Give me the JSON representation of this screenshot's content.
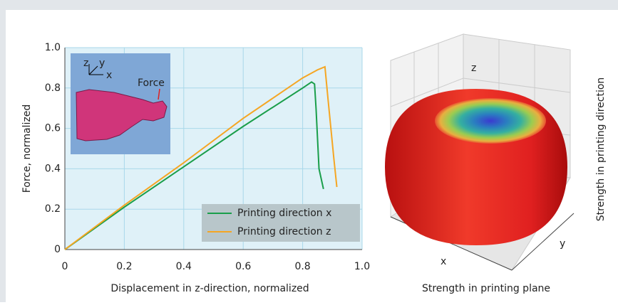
{
  "chart_data": {
    "type": "line",
    "x_label": "Displacement in z-direction, normalized",
    "y_label": "Force, normalized",
    "xlim": [
      0,
      1
    ],
    "ylim": [
      0,
      1
    ],
    "xticks": [
      0,
      0.2,
      0.4,
      0.6,
      0.8,
      {
        "value": 1,
        "label": "1.0"
      }
    ],
    "yticks": [
      0,
      0.2,
      0.4,
      0.6,
      0.8,
      {
        "value": 1,
        "label": "1.0"
      }
    ],
    "grid": true,
    "legend": "lower right",
    "series": [
      {
        "name": "Printing direction x",
        "color": "#1a9e4a",
        "x": [
          0,
          0.2,
          0.4,
          0.6,
          0.8,
          0.83,
          0.84,
          0.845,
          0.855,
          0.87
        ],
        "values": [
          0,
          0.21,
          0.41,
          0.61,
          0.8,
          0.83,
          0.82,
          0.7,
          0.4,
          0.3
        ]
      },
      {
        "name": "Printing direction z",
        "color": "#f5a623",
        "x": [
          0,
          0.2,
          0.4,
          0.6,
          0.8,
          0.85,
          0.875,
          0.885,
          0.895,
          0.905,
          0.915
        ],
        "values": [
          0,
          0.22,
          0.43,
          0.65,
          0.85,
          0.89,
          0.905,
          0.75,
          0.6,
          0.45,
          0.31
        ]
      }
    ]
  },
  "inset": {
    "axis_labels": [
      "z",
      "y",
      "x"
    ],
    "force_label": "Force"
  },
  "plot3d": {
    "z_label": "z",
    "x_label": "x",
    "y_label": "y",
    "caption_bottom": "Strength in printing plane",
    "caption_right": "Strength in printing direction"
  }
}
